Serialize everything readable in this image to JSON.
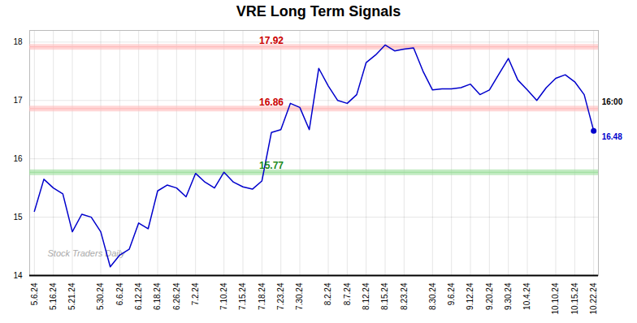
{
  "chart_data": {
    "type": "line",
    "title": "VRE Long Term Signals",
    "categories": [
      "5.6.24",
      null,
      "5.16.24",
      null,
      "5.21.24",
      null,
      null,
      "5.30.24",
      null,
      "6.6.24",
      null,
      "6.12.24",
      null,
      "6.18.24",
      null,
      "6.26.24",
      null,
      "7.2.24",
      null,
      null,
      "7.10.24",
      null,
      "7.15.24",
      null,
      "7.18.24",
      null,
      "7.23.24",
      null,
      "7.30.24",
      null,
      null,
      "8.2.24",
      null,
      "8.7.24",
      null,
      "8.12.24",
      null,
      "8.15.24",
      null,
      "8.23.24",
      null,
      null,
      "8.30.24",
      null,
      "9.6.24",
      null,
      "9.12.24",
      null,
      "9.20.24",
      null,
      "9.30.24",
      null,
      "10.4.24",
      null,
      null,
      "10.10.24",
      null,
      "10.15.24",
      null,
      "10.22.24"
    ],
    "values": [
      15.1,
      15.65,
      15.5,
      15.4,
      14.75,
      15.05,
      15.0,
      14.75,
      14.15,
      14.35,
      14.45,
      14.9,
      14.8,
      15.45,
      15.55,
      15.5,
      15.35,
      15.75,
      15.6,
      15.5,
      15.77,
      15.6,
      15.52,
      15.48,
      15.62,
      16.45,
      16.5,
      16.95,
      16.88,
      16.5,
      17.55,
      17.25,
      17.0,
      16.95,
      17.1,
      17.65,
      17.78,
      17.95,
      17.85,
      17.88,
      17.9,
      17.5,
      17.18,
      17.2,
      17.2,
      17.22,
      17.28,
      17.1,
      17.18,
      17.45,
      17.72,
      17.35,
      17.18,
      17.0,
      17.22,
      17.38,
      17.44,
      17.32,
      17.1,
      16.48
    ],
    "color": "#0000cc",
    "ylim": [
      14.0,
      18.2
    ],
    "yticks": [
      14,
      15,
      16,
      17,
      18
    ],
    "grid": true,
    "reference_lines": [
      {
        "y": 17.92,
        "label": "17.92",
        "color": "#ffbbbb",
        "label_color": "#cc0000"
      },
      {
        "y": 16.86,
        "label": "16.86",
        "color": "#ffbbbb",
        "label_color": "#cc0000"
      },
      {
        "y": 15.77,
        "label": "15.77",
        "color": "#99dd99",
        "label_color": "#228B22"
      }
    ],
    "last_label": "16.48",
    "last_time": "16:00",
    "watermark": "Stock Traders Daily"
  }
}
